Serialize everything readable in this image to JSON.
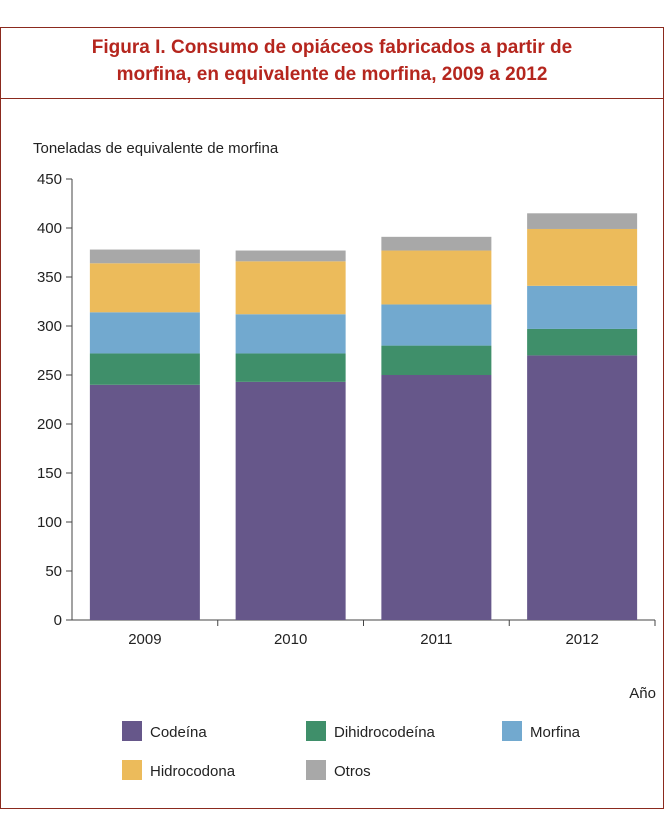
{
  "chart_data": {
    "type": "stacked_bar",
    "title": [
      "Figura I.   Consumo de opiáceos fabricados a partir de",
      "morfina, en equivalente de morfina, 2009 a 2012"
    ],
    "y_label": "Toneladas de equivalente de morfina",
    "x_label": "Año",
    "categories": [
      "2009",
      "2010",
      "2011",
      "2012"
    ],
    "series": [
      {
        "name": "Codeína",
        "color": "#66578a",
        "values": [
          240,
          243,
          250,
          270
        ]
      },
      {
        "name": "Dihidrocodeína",
        "color": "#3f8f6a",
        "values": [
          32,
          29,
          30,
          27
        ]
      },
      {
        "name": "Morfina",
        "color": "#72a9cf",
        "values": [
          42,
          40,
          42,
          44
        ]
      },
      {
        "name": "Hidrocodona",
        "color": "#ecbb5b",
        "values": [
          50,
          54,
          55,
          58
        ]
      },
      {
        "name": "Otros",
        "color": "#a8a8a8",
        "values": [
          14,
          11,
          14,
          16
        ]
      }
    ],
    "ylim": [
      0,
      450
    ],
    "yticks": [
      0,
      50,
      100,
      150,
      200,
      250,
      300,
      350,
      400,
      450
    ]
  }
}
